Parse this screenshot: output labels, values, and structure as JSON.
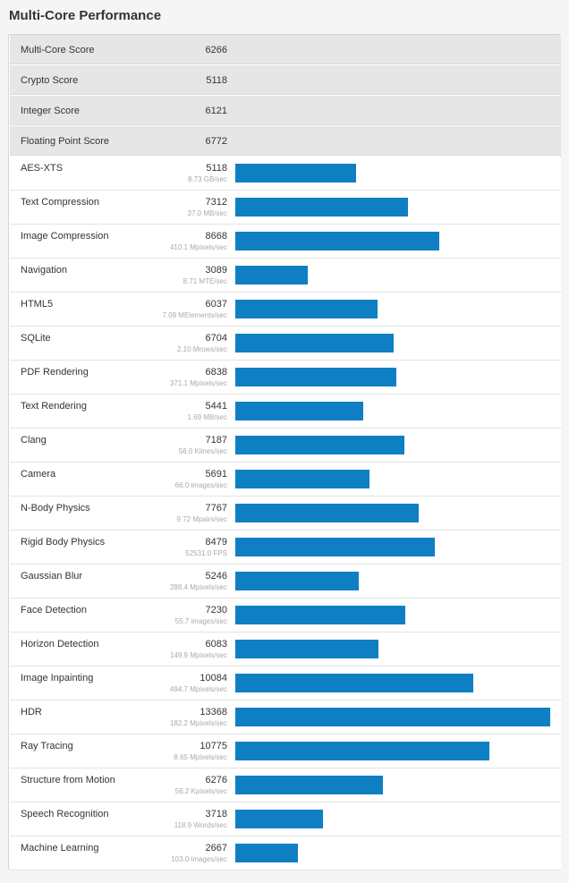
{
  "title": "Multi-Core Performance",
  "accent_color": "#0f7fc3",
  "scores": [
    {
      "label": "Multi-Core Score",
      "value": "6266"
    },
    {
      "label": "Crypto Score",
      "value": "5118"
    },
    {
      "label": "Integer Score",
      "value": "6121"
    },
    {
      "label": "Floating Point Score",
      "value": "6772"
    }
  ],
  "benchmarks": [
    {
      "name": "AES-XTS",
      "score": 5118,
      "detail": "8.73 GB/sec"
    },
    {
      "name": "Text Compression",
      "score": 7312,
      "detail": "37.0 MB/sec"
    },
    {
      "name": "Image Compression",
      "score": 8668,
      "detail": "410.1 Mpixels/sec"
    },
    {
      "name": "Navigation",
      "score": 3089,
      "detail": "8.71 MTE/sec"
    },
    {
      "name": "HTML5",
      "score": 6037,
      "detail": "7.09 MElements/sec"
    },
    {
      "name": "SQLite",
      "score": 6704,
      "detail": "2.10 Mrows/sec"
    },
    {
      "name": "PDF Rendering",
      "score": 6838,
      "detail": "371.1 Mpixels/sec"
    },
    {
      "name": "Text Rendering",
      "score": 5441,
      "detail": "1.69 MB/sec"
    },
    {
      "name": "Clang",
      "score": 7187,
      "detail": "56.0 Klines/sec"
    },
    {
      "name": "Camera",
      "score": 5691,
      "detail": "66.0 images/sec"
    },
    {
      "name": "N-Body Physics",
      "score": 7767,
      "detail": "9.72 Mpairs/sec"
    },
    {
      "name": "Rigid Body Physics",
      "score": 8479,
      "detail": "52531.0 FPS"
    },
    {
      "name": "Gaussian Blur",
      "score": 5246,
      "detail": "288.4 Mpixels/sec"
    },
    {
      "name": "Face Detection",
      "score": 7230,
      "detail": "55.7 images/sec"
    },
    {
      "name": "Horizon Detection",
      "score": 6083,
      "detail": "149.9 Mpixels/sec"
    },
    {
      "name": "Image Inpainting",
      "score": 10084,
      "detail": "494.7 Mpixels/sec"
    },
    {
      "name": "HDR",
      "score": 13368,
      "detail": "182.2 Mpixels/sec"
    },
    {
      "name": "Ray Tracing",
      "score": 10775,
      "detail": "8.65 Mpixels/sec"
    },
    {
      "name": "Structure from Motion",
      "score": 6276,
      "detail": "56.2 Kpixels/sec"
    },
    {
      "name": "Speech Recognition",
      "score": 3718,
      "detail": "118.9 Words/sec"
    },
    {
      "name": "Machine Learning",
      "score": 2667,
      "detail": "103.0 images/sec"
    }
  ]
}
